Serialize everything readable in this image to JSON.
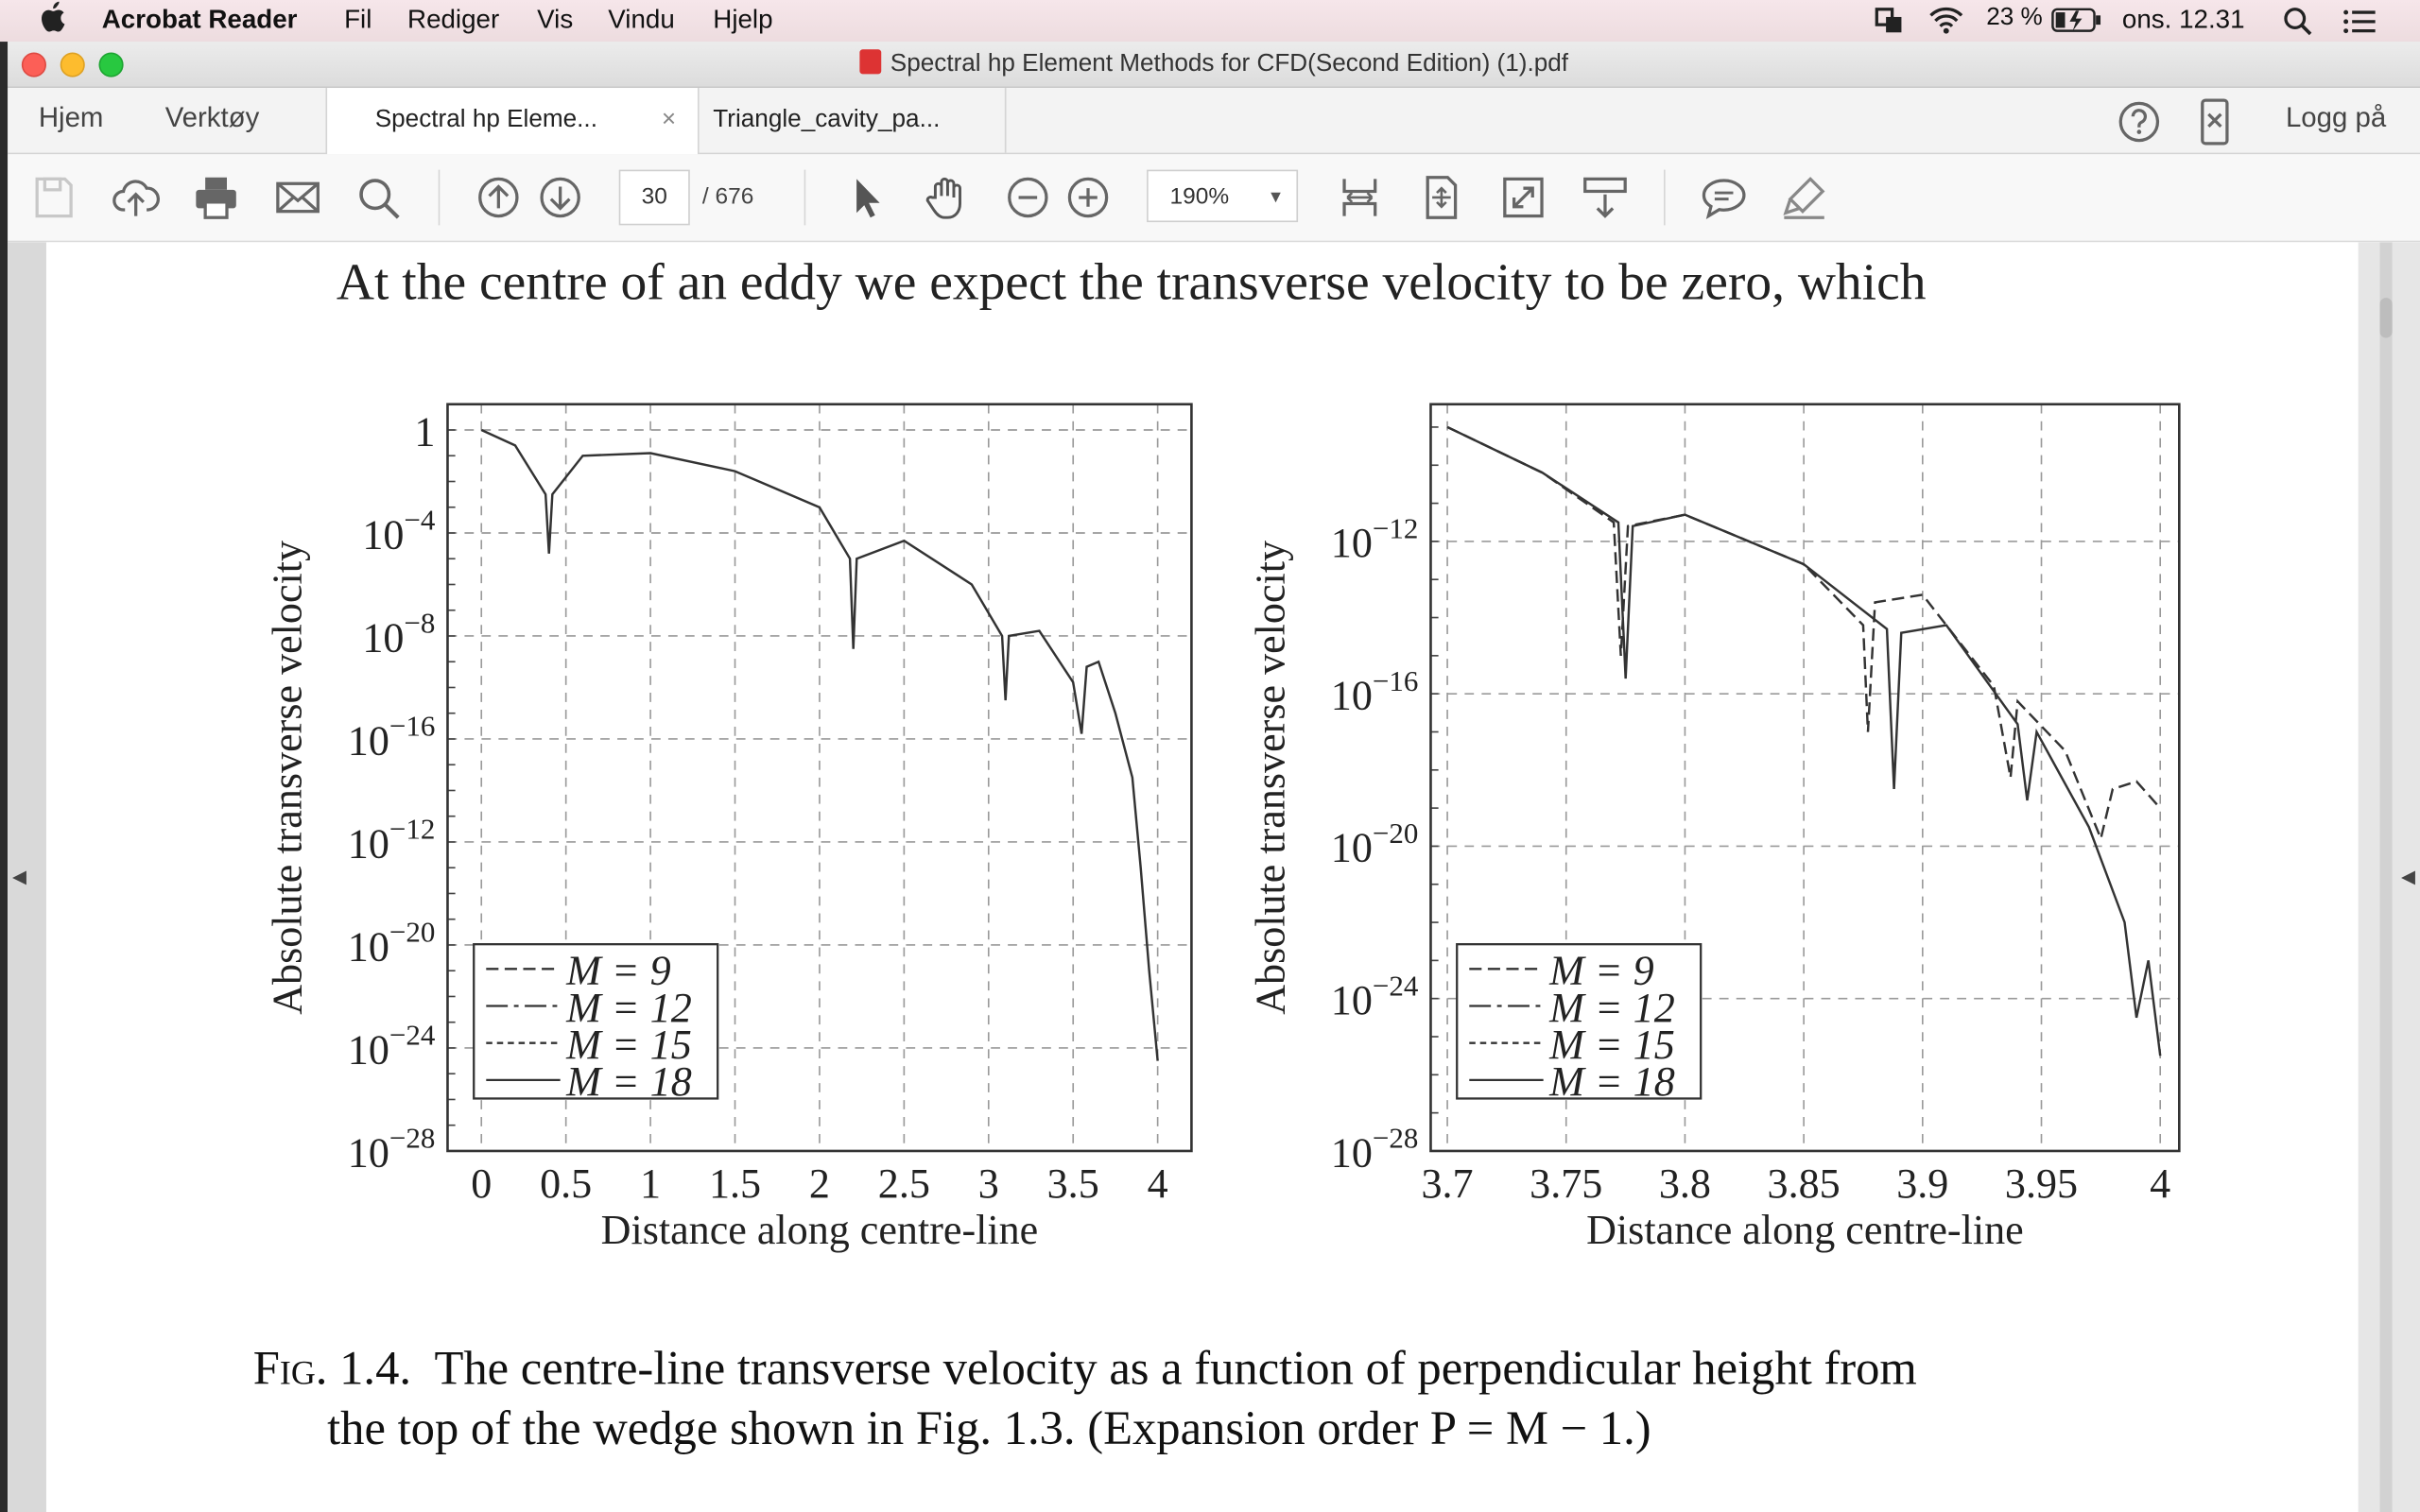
{
  "menubar": {
    "app_name": "Acrobat Reader",
    "items": [
      "Fil",
      "Rediger",
      "Vis",
      "Vindu",
      "Hjelp"
    ],
    "battery": "23 %",
    "clock": "ons. 12.31"
  },
  "window": {
    "title": "Spectral hp Element Methods for CFD(Second Edition) (1).pdf"
  },
  "tabs": {
    "home": "Hjem",
    "tools": "Verktøy",
    "doc1": "Spectral hp Eleme...",
    "doc2": "Triangle_cavity_pa...",
    "login": "Logg på",
    "close_symbol": "×"
  },
  "toolbar": {
    "page_current": "30",
    "page_total": "/  676",
    "zoom": "190%"
  },
  "document": {
    "body_text": "At the centre of an eddy we expect the transverse velocity to be zero, which",
    "caption_prefix": "Fig. 1.4.",
    "caption_line1": "The centre-line transverse velocity as a function of perpendicular height from",
    "caption_line2": "the top of the wedge shown in Fig. 1.3. (Expansion order P = M − 1.)"
  },
  "chart_data": [
    {
      "type": "line",
      "xlabel": "Distance along centre-line",
      "ylabel": "Absolute transverse velocity",
      "x_ticks": [
        "0",
        "0.5",
        "1",
        "1.5",
        "2",
        "2.5",
        "3",
        "3.5",
        "4"
      ],
      "y_ticks": [
        "1",
        "10−4",
        "10−8",
        "10−16",
        "10−12",
        "10−20",
        "10−24",
        "10−28"
      ],
      "xlim": [
        -0.2,
        4.2
      ],
      "ylim": [
        -28,
        1
      ],
      "log_y": true,
      "grid": true,
      "legend_position": "bottom-left",
      "legend": [
        "M = 9",
        "M = 12",
        "M = 15",
        "M = 18"
      ],
      "series": [
        {
          "name": "M = 18",
          "x": [
            0,
            0.2,
            0.38,
            0.4,
            0.42,
            0.6,
            1.0,
            1.5,
            2.0,
            2.18,
            2.2,
            2.22,
            2.5,
            2.9,
            3.08,
            3.1,
            3.12,
            3.3,
            3.5,
            3.55,
            3.58,
            3.65,
            3.75,
            3.85,
            3.9,
            3.95,
            4.0
          ],
          "y": [
            0,
            -0.6,
            -2.5,
            -4.8,
            -2.5,
            -1.0,
            -0.9,
            -1.6,
            -3.0,
            -5.0,
            -8.5,
            -5.0,
            -4.3,
            -6.0,
            -8.0,
            -10.5,
            -8.0,
            -7.8,
            -9.8,
            -11.8,
            -9.2,
            -9.0,
            -11.0,
            -13.5,
            -17.0,
            -21.0,
            -24.5
          ]
        }
      ]
    },
    {
      "type": "line",
      "xlabel": "Distance along centre-line",
      "ylabel": "Absolute transverse velocity",
      "x_ticks": [
        "3.7",
        "3.75",
        "3.8",
        "3.85",
        "3.9",
        "3.95",
        "4"
      ],
      "y_ticks": [
        "10−12",
        "10−16",
        "10−20",
        "10−24",
        "10−28"
      ],
      "xlim": [
        3.693,
        4.008
      ],
      "ylim": [
        -28,
        -8.4
      ],
      "log_y": true,
      "grid": true,
      "legend_position": "bottom-left",
      "legend": [
        "M = 9",
        "M = 12",
        "M = 15",
        "M = 18"
      ],
      "series": [
        {
          "name": "M = 9",
          "x": [
            3.7,
            3.74,
            3.77,
            3.773,
            3.776,
            3.8,
            3.85,
            3.875,
            3.877,
            3.88,
            3.9,
            3.93,
            3.937,
            3.94,
            3.96,
            3.975,
            3.98,
            3.99,
            4.0
          ],
          "y": [
            -9,
            -10.2,
            -11.5,
            -15,
            -11.6,
            -11.3,
            -12.6,
            -14.2,
            -17,
            -13.6,
            -13.4,
            -15.8,
            -18.2,
            -16.2,
            -17.5,
            -19.8,
            -18.5,
            -18.3,
            -19
          ]
        },
        {
          "name": "M = 18",
          "x": [
            3.7,
            3.74,
            3.772,
            3.775,
            3.778,
            3.8,
            3.85,
            3.885,
            3.888,
            3.891,
            3.91,
            3.94,
            3.944,
            3.948,
            3.97,
            3.985,
            3.99,
            3.995,
            4.0
          ],
          "y": [
            -9,
            -10.2,
            -11.5,
            -15.6,
            -11.6,
            -11.3,
            -12.6,
            -14.3,
            -18.5,
            -14.4,
            -14.2,
            -16.8,
            -18.8,
            -17.0,
            -19.5,
            -22.0,
            -24.5,
            -23.0,
            -25.5
          ]
        }
      ]
    }
  ]
}
